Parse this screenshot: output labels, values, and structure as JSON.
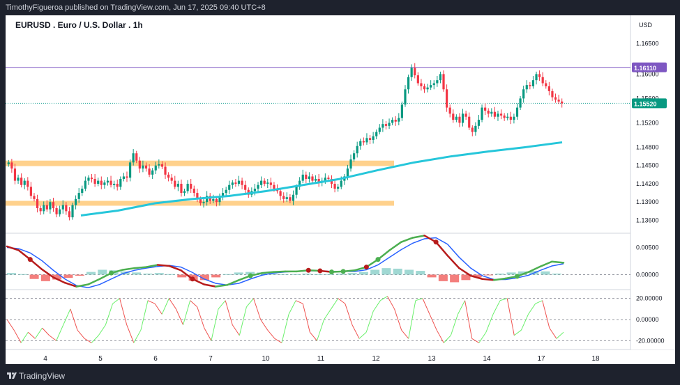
{
  "header": {
    "published_line": "TimothyFigueroa published on TradingView.com, Jun 17, 2025 09:40 UTC+8"
  },
  "footer": {
    "brand": "TradingView"
  },
  "chart_data": {
    "type": "candlestick",
    "title": "EURUSD . Euro / U.S. Dollar . 1h",
    "currency": "USD",
    "last_price": "1.15520",
    "last_price_value": 1.1552,
    "horizontal_line_label": "1.16110",
    "horizontal_line_value": 1.1611,
    "y_ticks": [
      "1.16500",
      "1.16000",
      "1.15600",
      "1.15200",
      "1.14800",
      "1.14500",
      "1.14200",
      "1.13900",
      "1.13600"
    ],
    "y_tick_values": [
      1.165,
      1.16,
      1.156,
      1.152,
      1.148,
      1.145,
      1.142,
      1.139,
      1.136
    ],
    "x_ticks": [
      "4",
      "5",
      "6",
      "7",
      "10",
      "11",
      "12",
      "13",
      "14",
      "17",
      "18"
    ],
    "price_range": [
      1.134,
      1.1685
    ],
    "zones": [
      {
        "name": "upper-zone",
        "low": 1.1449,
        "high": 1.1458
      },
      {
        "name": "lower-zone",
        "low": 1.1384,
        "high": 1.1392
      }
    ],
    "close_series": [
      1.1455,
      1.1445,
      1.1425,
      1.143,
      1.1418,
      1.1425,
      1.1415,
      1.14,
      1.1395,
      1.138,
      1.1375,
      1.1385,
      1.1378,
      1.139,
      1.138,
      1.137,
      1.1378,
      1.1385,
      1.1375,
      1.1365,
      1.1385,
      1.1395,
      1.1405,
      1.1412,
      1.1425,
      1.143,
      1.1428,
      1.142,
      1.1425,
      1.1418,
      1.1422,
      1.1425,
      1.1418,
      1.142,
      1.1415,
      1.1428,
      1.1432,
      1.143,
      1.1455,
      1.147,
      1.1458,
      1.1445,
      1.145,
      1.1445,
      1.1435,
      1.1442,
      1.145,
      1.1452,
      1.1448,
      1.1435,
      1.143,
      1.1425,
      1.1415,
      1.142,
      1.1405,
      1.1408,
      1.142,
      1.1412,
      1.1405,
      1.1395,
      1.1388,
      1.139,
      1.14,
      1.1392,
      1.1395,
      1.139,
      1.1398,
      1.1405,
      1.141,
      1.1418,
      1.1422,
      1.142,
      1.1425,
      1.1418,
      1.141,
      1.1402,
      1.1408,
      1.1412,
      1.1418,
      1.1425,
      1.142,
      1.1422,
      1.1418,
      1.1412,
      1.1408,
      1.14,
      1.1395,
      1.1398,
      1.1392,
      1.1402,
      1.1415,
      1.1425,
      1.1435,
      1.1428,
      1.1432,
      1.1425,
      1.1428,
      1.1422,
      1.1425,
      1.143,
      1.1428,
      1.142,
      1.1412,
      1.1415,
      1.1425,
      1.1432,
      1.1445,
      1.146,
      1.147,
      1.1482,
      1.149,
      1.1488,
      1.1495,
      1.1492,
      1.1498,
      1.1505,
      1.1512,
      1.1518,
      1.1515,
      1.152,
      1.1525,
      1.1522,
      1.1528,
      1.155,
      1.1575,
      1.1595,
      1.161,
      1.1598,
      1.1585,
      1.158,
      1.1575,
      1.1578,
      1.1582,
      1.1585,
      1.159,
      1.16,
      1.1575,
      1.1545,
      1.1535,
      1.1525,
      1.153,
      1.152,
      1.1535,
      1.153,
      1.1512,
      1.1505,
      1.1515,
      1.1525,
      1.1545,
      1.154,
      1.1535,
      1.1538,
      1.153,
      1.1535,
      1.1532,
      1.1528,
      1.153,
      1.1525,
      1.153,
      1.1545,
      1.156,
      1.1575,
      1.1582,
      1.158,
      1.159,
      1.16,
      1.1595,
      1.1585,
      1.158,
      1.1572,
      1.1562,
      1.1558,
      1.1555,
      1.1552
    ],
    "ema_series": [
      1.1368,
      1.1376,
      1.1388,
      1.1395,
      1.14,
      1.1408,
      1.1418,
      1.1428,
      1.1442,
      1.1455,
      1.1465,
      1.1473,
      1.148,
      1.1488
    ],
    "macd": {
      "range": [
        -0.0025,
        0.0075
      ],
      "ticks": [
        "0.00500",
        "0.00000"
      ],
      "tick_values": [
        0.005,
        0.0
      ],
      "macd_line": [
        0.0052,
        0.0045,
        0.0028,
        0.001,
        -0.0005,
        -0.0015,
        -0.0022,
        -0.0018,
        -0.0008,
        0.0003,
        0.0009,
        0.0012,
        0.0014,
        0.0018,
        0.0016,
        0.0008,
        -0.0008,
        -0.0018,
        -0.0022,
        -0.0019,
        -0.001,
        -0.0002,
        0.0003,
        0.0005,
        0.0006,
        0.0006,
        0.0008,
        0.0007,
        0.0005,
        0.0006,
        0.0008,
        0.0014,
        0.0028,
        0.0045,
        0.006,
        0.0068,
        0.0072,
        0.006,
        0.0035,
        0.0012,
        -0.0002,
        -0.0008,
        -0.001,
        -0.0007,
        -0.0003,
        0.0005,
        0.0015,
        0.0024,
        0.0022
      ],
      "signal_line": [
        0.005,
        0.0048,
        0.004,
        0.0026,
        0.0008,
        -0.0008,
        -0.002,
        -0.0024,
        -0.0018,
        -0.0008,
        0.0002,
        0.0008,
        0.0012,
        0.0015,
        0.0017,
        0.0014,
        0.0004,
        -0.0008,
        -0.0016,
        -0.0019,
        -0.0016,
        -0.0008,
        -0.0001,
        0.0003,
        0.0005,
        0.0006,
        0.0007,
        0.0007,
        0.0006,
        0.0006,
        0.0006,
        0.0009,
        0.0018,
        0.0032,
        0.0046,
        0.0058,
        0.0066,
        0.0068,
        0.0056,
        0.0032,
        0.0012,
        -0.0002,
        -0.0009,
        -0.0009,
        -0.0006,
        -0.0001,
        0.0008,
        0.0016,
        0.002
      ],
      "histogram": [
        0.0003,
        0.0001,
        -0.0008,
        -0.0012,
        -0.0009,
        -0.0006,
        -0.0002,
        0.0005,
        0.0009,
        0.0008,
        0.0006,
        0.0004,
        0.0002,
        0.0003,
        0.0001,
        -0.0005,
        -0.0011,
        -0.001,
        -0.0005,
        0.0001,
        0.0004,
        0.0005,
        0.0004,
        0.0002,
        0.0001,
        0.0001,
        0.0002,
        0.0001,
        0.0001,
        0.0002,
        0.0003,
        0.0005,
        0.0009,
        0.0012,
        0.0011,
        0.0009,
        0.0007,
        -0.0005,
        -0.0012,
        -0.0014,
        -0.001,
        -0.0005,
        -0.0001,
        0.0002,
        0.0004,
        0.0006,
        0.0007,
        0.0006,
        0.0002
      ],
      "cross_points": [
        {
          "index": 2,
          "type": "bearish"
        },
        {
          "index": 9,
          "type": "bullish"
        },
        {
          "index": 16,
          "type": "bearish"
        },
        {
          "index": 21,
          "type": "bullish"
        },
        {
          "index": 26,
          "type": "bearish"
        },
        {
          "index": 27,
          "type": "bearish"
        },
        {
          "index": 28,
          "type": "bullish"
        },
        {
          "index": 29,
          "type": "bullish"
        },
        {
          "index": 31,
          "type": "bearish"
        },
        {
          "index": 32,
          "type": "bullish"
        },
        {
          "index": 37,
          "type": "bearish"
        },
        {
          "index": 44,
          "type": "bullish"
        }
      ]
    },
    "oscillator": {
      "range": [
        -27,
        27
      ],
      "ticks": [
        "20.00000",
        "0.00000",
        "-20.00000"
      ],
      "tick_values": [
        20,
        0,
        -20
      ],
      "values": [
        0,
        -10,
        -22,
        -12,
        -18,
        -8,
        -15,
        -20,
        -5,
        10,
        -10,
        -18,
        -22,
        -15,
        -5,
        15,
        20,
        -5,
        -22,
        -10,
        18,
        15,
        5,
        20,
        10,
        -5,
        18,
        12,
        -8,
        -20,
        10,
        18,
        -5,
        -15,
        12,
        20,
        0,
        -10,
        -18,
        -22,
        5,
        18,
        15,
        -12,
        -20,
        0,
        10,
        20,
        15,
        -5,
        -18,
        -12,
        8,
        18,
        22,
        10,
        -10,
        -18,
        18,
        20,
        5,
        -10,
        -22,
        -15,
        5,
        18,
        -18,
        -22,
        -12,
        5,
        18,
        20,
        -15,
        -10,
        5,
        15,
        18,
        -8,
        -18,
        -12
      ]
    }
  }
}
